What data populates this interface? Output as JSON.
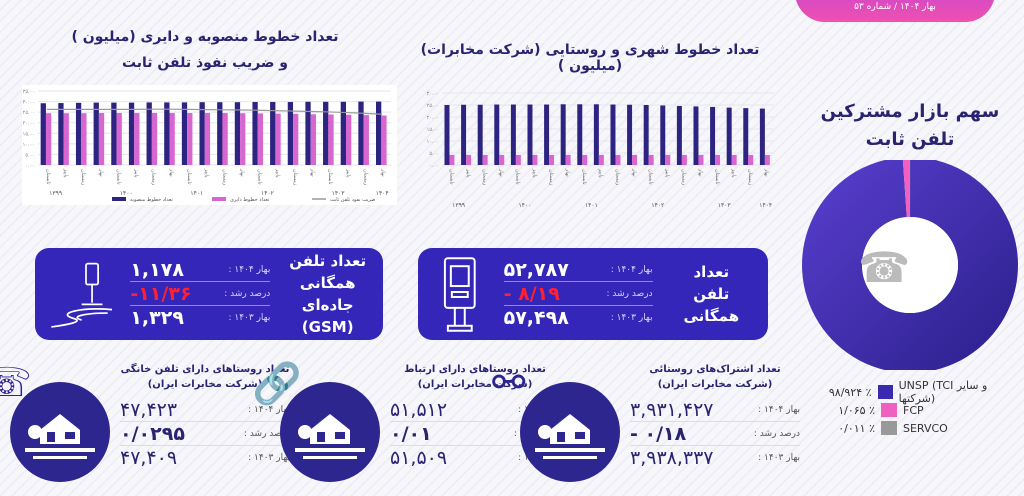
{
  "header": {
    "issue": "بهار ۱۴۰۴ / شماره ۵۳",
    "gradient": [
      "#c040e0",
      "#f050b0"
    ]
  },
  "chart_left": {
    "title1": "تعداد خطوط منصوبه و دایری (میلیون )",
    "title2": "و ضریب نفوذ تلفن ثابت"
  },
  "chart_right": {
    "title": "تعداد خطوط شهری و روستایی (شرکت مخابرات) (میلیون )"
  },
  "chart_data": [
    {
      "type": "bar",
      "ylim": [
        0,
        35
      ],
      "yticks": [
        "۰.۰۰",
        "۵.۰۰",
        "۱۰.۰۰",
        "۱۵.۰۰",
        "۲۰.۰۰",
        "۲۵.۰۰",
        "۳۰.۰۰",
        "۳۵.۰۰"
      ],
      "categories": [
        "تابستان",
        "پاییز",
        "زمستان",
        "بهار",
        "تابستان",
        "پاییز",
        "زمستان",
        "بهار",
        "تابستان",
        "پاییز",
        "زمستان",
        "بهار",
        "تابستان",
        "پاییز",
        "زمستان",
        "بهار",
        "تابستان",
        "پاییز",
        "زمستان",
        "بهار"
      ],
      "groups": [
        "۱۳۹۹",
        "۱۴۰۰",
        "۱۴۰۱",
        "۱۴۰۲",
        "۱۴۰۳",
        "۱۴۰۴"
      ],
      "series": [
        {
          "name": "تعداد خطوط منصوبه",
          "color": "#2d2380",
          "values": [
            29.2,
            29.3,
            29.4,
            29.5,
            29.5,
            29.5,
            29.6,
            29.6,
            29.6,
            29.7,
            29.7,
            29.7,
            29.8,
            29.8,
            29.8,
            29.9,
            29.9,
            29.9,
            30.0,
            30.0
          ]
        },
        {
          "name": "تعداد خطوط دایری",
          "color": "#d866d0",
          "values": [
            24.5,
            24.5,
            24.5,
            24.6,
            24.6,
            24.6,
            24.6,
            24.6,
            24.6,
            24.6,
            24.6,
            24.5,
            24.4,
            24.3,
            24.2,
            24.0,
            23.9,
            23.8,
            23.6,
            23.4
          ]
        },
        {
          "name": "ضریب نفوذ تلفن ثابت",
          "color": "#999999",
          "type": "line",
          "values": [
            26.3,
            26.3,
            26.3,
            26.3,
            26.3,
            26.3,
            26.4,
            26.4,
            26.3,
            26.2,
            26.1,
            26.0,
            25.9,
            25.7,
            25.5,
            25.3,
            25.1,
            24.8,
            24.4,
            24.0
          ]
        }
      ],
      "grid": true,
      "legend": "bottom"
    },
    {
      "type": "bar",
      "ylim": [
        0,
        30
      ],
      "yticks": [
        "۰.۰۰",
        "۵.۰۰",
        "۱۰.۰۰",
        "۱۵.۰۰",
        "۲۰.۰۰",
        "۲۵.۰۰",
        "۳۰.۰۰"
      ],
      "categories": [
        "تابستان",
        "پاییز",
        "زمستان",
        "بهار",
        "تابستان",
        "پاییز",
        "زمستان",
        "بهار",
        "تابستان",
        "پاییز",
        "زمستان",
        "بهار",
        "تابستان",
        "پاییز",
        "زمستان",
        "بهار",
        "تابستان",
        "پاییز",
        "زمستان",
        "بهار"
      ],
      "groups": [
        "۱۳۹۹",
        "۱۴۰۰",
        "۱۴۰۱",
        "۱۴۰۲",
        "۱۴۰۳",
        "۱۴۰۴"
      ],
      "series": [
        {
          "color": "#2d2380",
          "values": [
            25.0,
            25.1,
            25.1,
            25.2,
            25.2,
            25.2,
            25.2,
            25.3,
            25.3,
            25.3,
            25.2,
            25.1,
            25.0,
            24.8,
            24.6,
            24.4,
            24.2,
            23.9,
            23.7,
            23.5
          ]
        },
        {
          "color": "#d866d0",
          "values": [
            4.2,
            4.2,
            4.2,
            4.2,
            4.2,
            4.2,
            4.2,
            4.2,
            4.2,
            4.2,
            4.2,
            4.2,
            4.2,
            4.2,
            4.2,
            4.2,
            4.2,
            4.2,
            4.2,
            4.2
          ]
        }
      ],
      "grid": true
    },
    {
      "type": "pie",
      "title": "سهم بازار مشترکین تلفن ثابت",
      "slices": [
        {
          "name": "UNSP (TCI و سایر شرکتها)",
          "value": 98.924,
          "label": "۹۸/۹۲۴ ٪",
          "color": "#3a2ab0"
        },
        {
          "name": "FCP",
          "value": 1.065,
          "label": "۱/۰۶۵ ٪",
          "color": "#f060c0"
        },
        {
          "name": "SERVCO",
          "value": 0.011,
          "label": "۰/۰۱۱ ٪",
          "color": "#999999"
        }
      ]
    }
  ],
  "donut": {
    "title1": "سهم بازار مشترکین",
    "title2": "تلفن ثابت",
    "center_icon": "telephone-icon"
  },
  "cards": [
    {
      "label1": "تعداد تلفن",
      "label2": "همگانی جاده‌ای",
      "label3": "(GSM)",
      "k1": "بهار ۱۴۰۴ :",
      "v1": "۱,۱۷۸",
      "k2": "درصد رشد :",
      "v2": "-۱۱/۳۶",
      "k3": "بهار ۱۴۰۳ :",
      "v3": "۱,۳۲۹",
      "icon": "roadside-phone-icon"
    },
    {
      "label1": "تعداد",
      "label2": "تلفن همگانی",
      "label3": "",
      "k1": "بهار ۱۴۰۴ :",
      "v1": "۵۲,۷۸۷",
      "k2": "درصد رشد :",
      "v2": "- ۸/۱۹",
      "k3": "بهار ۱۴۰۳ :",
      "v3": "۵۷,۴۹۸",
      "icon": "payphone-booth-icon"
    }
  ],
  "villages": [
    {
      "title1": "تعداد روستاهای دارای تلفن خانگی",
      "title2": "(شرکت مخابرات ایران)",
      "k1": "بهار ۱۴۰۴ :",
      "v1": "۴۷,۴۲۳",
      "k2": "درصد رشد :",
      "v2": "۰/۰۲۹۵",
      "k3": "بهار ۱۴۰۳ :",
      "v3": "۴۷,۴۰۹",
      "tone": "green",
      "icon": "phone-handset-icon"
    },
    {
      "title1": "تعداد روستاهای دارای ارتباط",
      "title2": "(شرکت مخابرات ایران)",
      "k1": "بهار ۱۴۰۴ :",
      "v1": "۵۱,۵۱۲",
      "k2": "درصد رشد :",
      "v2": "۰/۰۱",
      "k3": "بهار ۱۴۰۳ :",
      "v3": "۵۱,۵۰۹",
      "tone": "green",
      "icon": "link-icon"
    },
    {
      "title1": "تعداد اشتراک‌های روستائی",
      "title2": "(شرکت مخابرات ایران)",
      "k1": "بهار ۱۴۰۴ :",
      "v1": "۳,۹۳۱,۴۲۷",
      "k2": "درصد رشد :",
      "v2": "- ۰/۱۸",
      "k3": "بهار ۱۴۰۳ :",
      "v3": "۳,۹۳۸,۳۳۷",
      "tone": "red",
      "icon": "network-nodes-icon"
    }
  ]
}
